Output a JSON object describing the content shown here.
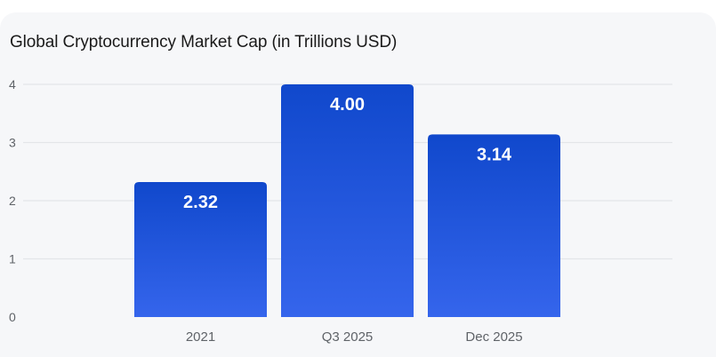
{
  "chart_data": {
    "type": "bar",
    "title": "Global Cryptocurrency Market Cap (in Trillions USD)",
    "categories": [
      "2021",
      "Q3 2025",
      "Dec 2025"
    ],
    "values": [
      2.32,
      4.0,
      3.14
    ],
    "data_labels": [
      "2.32",
      "4.00",
      "3.14"
    ],
    "xlabel": "",
    "ylabel": "",
    "ylim": [
      0,
      4
    ],
    "yticks": [
      "0",
      "1",
      "2",
      "3",
      "4"
    ],
    "grid": true,
    "legend": "none"
  },
  "colors": {
    "bar_top": "#1048cc",
    "bar_bottom": "#3565ec",
    "grid": "#e3e5e9",
    "card_bg": "#f6f7f9"
  }
}
